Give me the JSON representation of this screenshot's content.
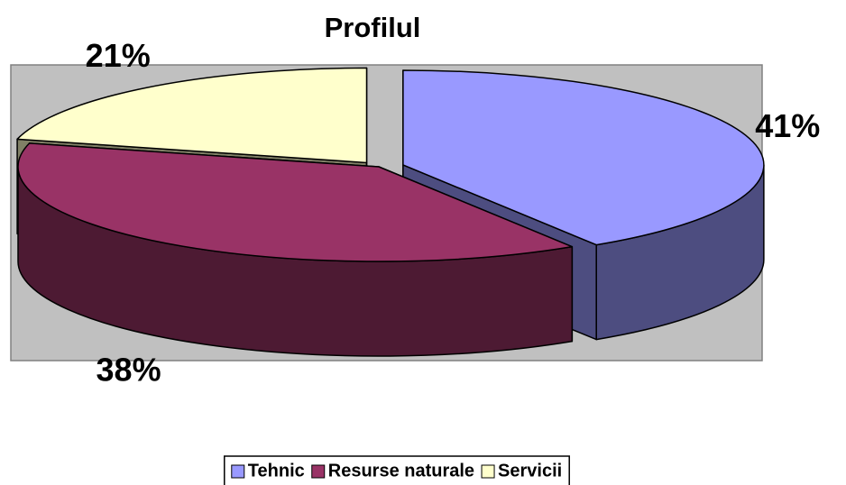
{
  "chart_data": {
    "type": "pie3d",
    "title": "Profilul",
    "categories": [
      "Tehnic",
      "Resurse naturale",
      "Servicii"
    ],
    "values": [
      41,
      38,
      21
    ],
    "value_labels": [
      "41%",
      "38%",
      "21%"
    ],
    "colors": [
      "#9999ff",
      "#993366",
      "#ffffcc"
    ],
    "legend": "bottom"
  }
}
